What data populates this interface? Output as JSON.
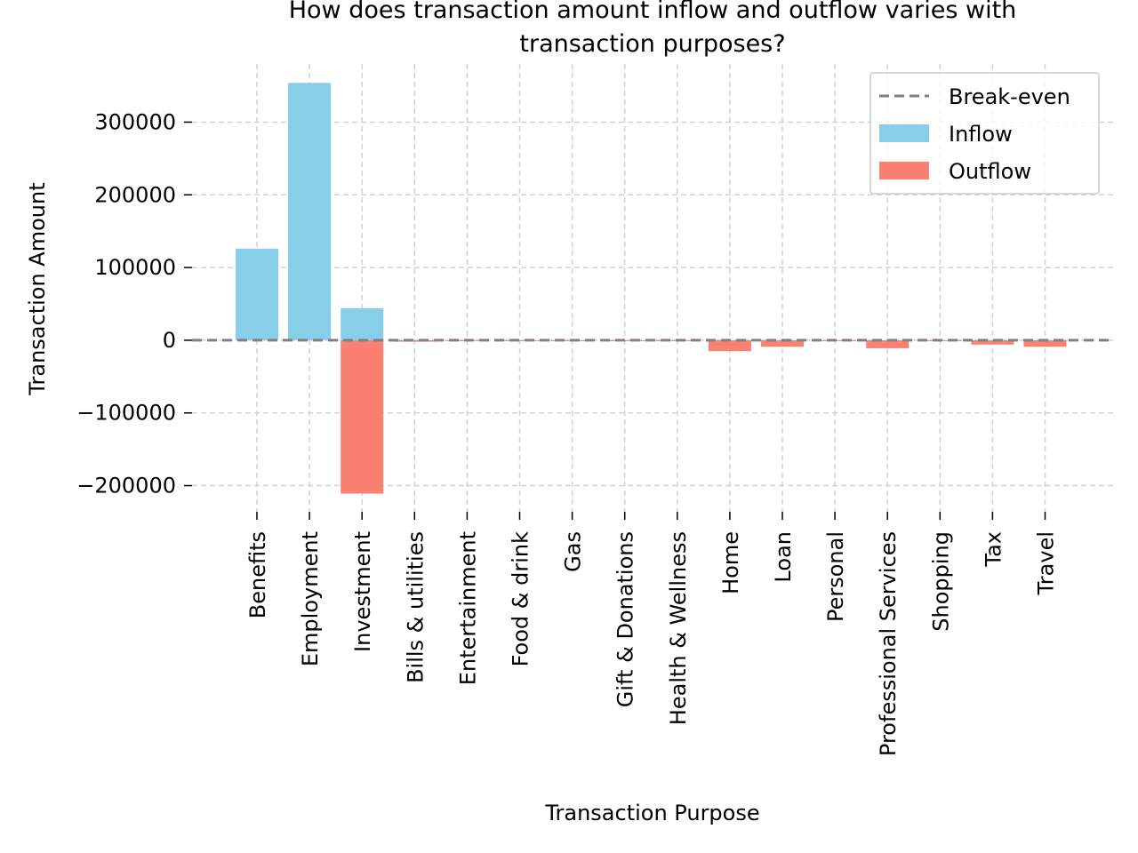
{
  "chart_data": {
    "type": "bar",
    "title_lines": [
      "How does transaction amount inflow and outflow varies with",
      "transaction purposes?"
    ],
    "xlabel": "Transaction Purpose",
    "ylabel": "Transaction Amount",
    "categories": [
      "Benefits",
      "Employment",
      "Investment",
      "Bills & utilities",
      "Entertainment",
      "Food & drink",
      "Gas",
      "Gift & Donations",
      "Health & Wellness",
      "Home",
      "Loan",
      "Personal",
      "Professional Services",
      "Shopping",
      "Tax",
      "Travel"
    ],
    "series": [
      {
        "name": "Inflow",
        "color": "#87ceeb",
        "values": [
          126000,
          354000,
          44000,
          0,
          0,
          0,
          0,
          0,
          0,
          0,
          0,
          0,
          0,
          0,
          0,
          0
        ]
      },
      {
        "name": "Outflow",
        "color": "#fa8072",
        "values": [
          0,
          0,
          -211000,
          -2000,
          -500,
          -500,
          -500,
          -500,
          -500,
          -15000,
          -9000,
          -1000,
          -11000,
          -1000,
          -6000,
          -9000
        ]
      }
    ],
    "reference_line": {
      "name": "Break-even",
      "value": 0,
      "color": "#808080",
      "style": "dashed"
    },
    "ylim": [
      -236000,
      380000
    ],
    "yticks": [
      -200000,
      -100000,
      0,
      100000,
      200000,
      300000
    ],
    "ytick_labels": [
      "−200000",
      "−100000",
      "0",
      "100000",
      "200000",
      "300000"
    ],
    "grid": true,
    "legend_position": "top-right"
  }
}
